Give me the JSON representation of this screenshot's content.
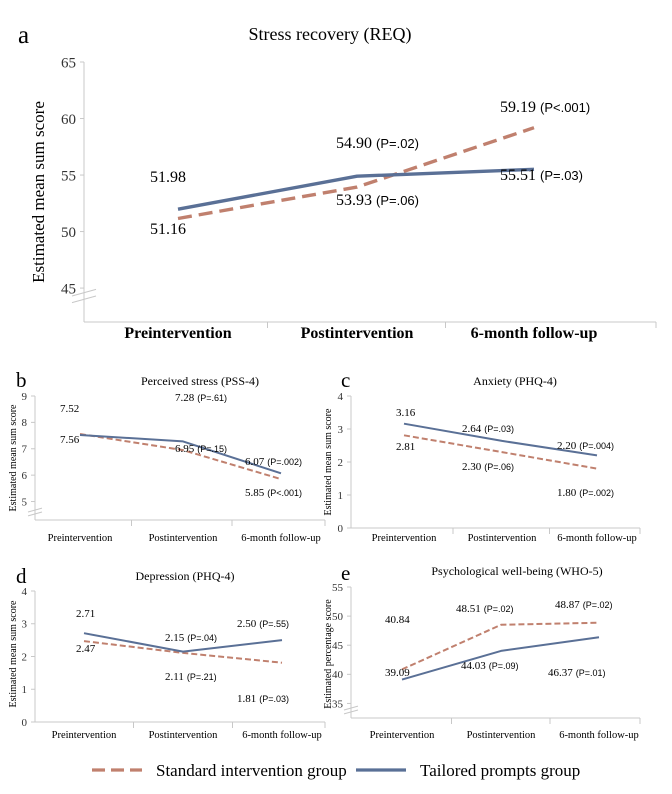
{
  "colors": {
    "standard": "#C0806E",
    "tailored": "#5A7096",
    "axis": "#C8C8C8",
    "text": "#000000"
  },
  "legend": {
    "standard": "Standard intervention group",
    "tailored": "Tailored prompts group"
  },
  "chart_data": [
    {
      "id": "a",
      "panel_letter": "a",
      "type": "line",
      "title": "Stress recovery (REQ)",
      "ylabel": "Estimated mean sum score",
      "xlabel": "",
      "categories": [
        "Preintervention",
        "Postintervention",
        "6-month follow-up"
      ],
      "ylim": [
        42,
        65
      ],
      "yticks": [
        45,
        50,
        55,
        60,
        65
      ],
      "axis_break": true,
      "series": [
        {
          "name": "Standard intervention group",
          "style": "dashed",
          "values": [
            51.16,
            53.93,
            59.19
          ],
          "labels": [
            "51.16",
            "53.93",
            "59.19"
          ],
          "pvals": [
            "",
            "(P=.06)",
            "(P<.001)"
          ]
        },
        {
          "name": "Tailored prompts group",
          "style": "solid",
          "values": [
            51.98,
            54.9,
            55.51
          ],
          "labels": [
            "51.98",
            "54.90",
            "55.51"
          ],
          "pvals": [
            "",
            "(P=.02)",
            "(P=.03)"
          ]
        }
      ]
    },
    {
      "id": "b",
      "panel_letter": "b",
      "type": "line",
      "title": "Perceived stress (PSS-4)",
      "ylabel": "Estimated mean sum score",
      "xlabel": "",
      "categories": [
        "Preintervention",
        "Postintervention",
        "6-month follow-up"
      ],
      "ylim": [
        4.3,
        9
      ],
      "yticks": [
        5,
        6,
        7,
        8,
        9
      ],
      "axis_break": true,
      "series": [
        {
          "name": "Standard intervention group",
          "style": "dashed",
          "values": [
            7.56,
            6.95,
            5.85
          ],
          "labels": [
            "7.56",
            "6.95",
            "5.85"
          ],
          "pvals": [
            "",
            "(P=.15)",
            "(P<.001)"
          ]
        },
        {
          "name": "Tailored prompts group",
          "style": "solid",
          "values": [
            7.52,
            7.28,
            6.07
          ],
          "labels": [
            "7.52",
            "7.28",
            "6.07"
          ],
          "pvals": [
            "",
            "(P=.61)",
            "(P=.002)"
          ]
        }
      ]
    },
    {
      "id": "c",
      "panel_letter": "c",
      "type": "line",
      "title": "Anxiety (PHQ-4)",
      "ylabel": "Estimated mean sum score",
      "xlabel": "",
      "categories": [
        "Preintervention",
        "Postintervention",
        "6-month follow-up"
      ],
      "ylim": [
        0,
        4
      ],
      "yticks": [
        0,
        1,
        2,
        3,
        4
      ],
      "axis_break": false,
      "series": [
        {
          "name": "Standard intervention group",
          "style": "dashed",
          "values": [
            2.81,
            2.3,
            1.8
          ],
          "labels": [
            "2.81",
            "2.30",
            "1.80"
          ],
          "pvals": [
            "",
            "(P=.06)",
            "(P=.002)"
          ]
        },
        {
          "name": "Tailored prompts group",
          "style": "solid",
          "values": [
            3.16,
            2.64,
            2.2
          ],
          "labels": [
            "3.16",
            "2.64",
            "2.20"
          ],
          "pvals": [
            "",
            "(P=.03)",
            "(P=.004)"
          ]
        }
      ]
    },
    {
      "id": "d",
      "panel_letter": "d",
      "type": "line",
      "title": "Depression (PHQ-4)",
      "ylabel": "Estimated mean sum score",
      "xlabel": "",
      "categories": [
        "Preintervention",
        "Postintervention",
        "6-month follow-up"
      ],
      "ylim": [
        0,
        4
      ],
      "yticks": [
        0,
        1,
        2,
        3,
        4
      ],
      "axis_break": false,
      "series": [
        {
          "name": "Standard intervention group",
          "style": "dashed",
          "values": [
            2.47,
            2.11,
            1.81
          ],
          "labels": [
            "2.47",
            "2.11",
            "1.81"
          ],
          "pvals": [
            "",
            "(P=.21)",
            "(P=.03)"
          ]
        },
        {
          "name": "Tailored prompts group",
          "style": "solid",
          "values": [
            2.71,
            2.15,
            2.5
          ],
          "labels": [
            "2.71",
            "2.15",
            "2.50"
          ],
          "pvals": [
            "",
            "(P=.04)",
            "(P=.55)"
          ]
        }
      ]
    },
    {
      "id": "e",
      "panel_letter": "e",
      "type": "line",
      "title": "Psychological well-being (WHO-5)",
      "ylabel": "Estimated percentage score",
      "xlabel": "",
      "categories": [
        "Preintervention",
        "Postintervention",
        "6-month follow-up"
      ],
      "ylim": [
        32.5,
        55
      ],
      "yticks": [
        35,
        40,
        45,
        50,
        55
      ],
      "axis_break": true,
      "series": [
        {
          "name": "Standard intervention group",
          "style": "dashed",
          "values": [
            40.84,
            48.51,
            48.87
          ],
          "labels": [
            "40.84",
            "48.51",
            "48.87"
          ],
          "pvals": [
            "",
            "(P=.02)",
            "(P=.02)"
          ]
        },
        {
          "name": "Tailored prompts group",
          "style": "solid",
          "values": [
            39.09,
            44.03,
            46.37
          ],
          "labels": [
            "39.09",
            "44.03",
            "46.37"
          ],
          "pvals": [
            "",
            "(P=.09)",
            "(P=.01)"
          ]
        }
      ]
    }
  ]
}
